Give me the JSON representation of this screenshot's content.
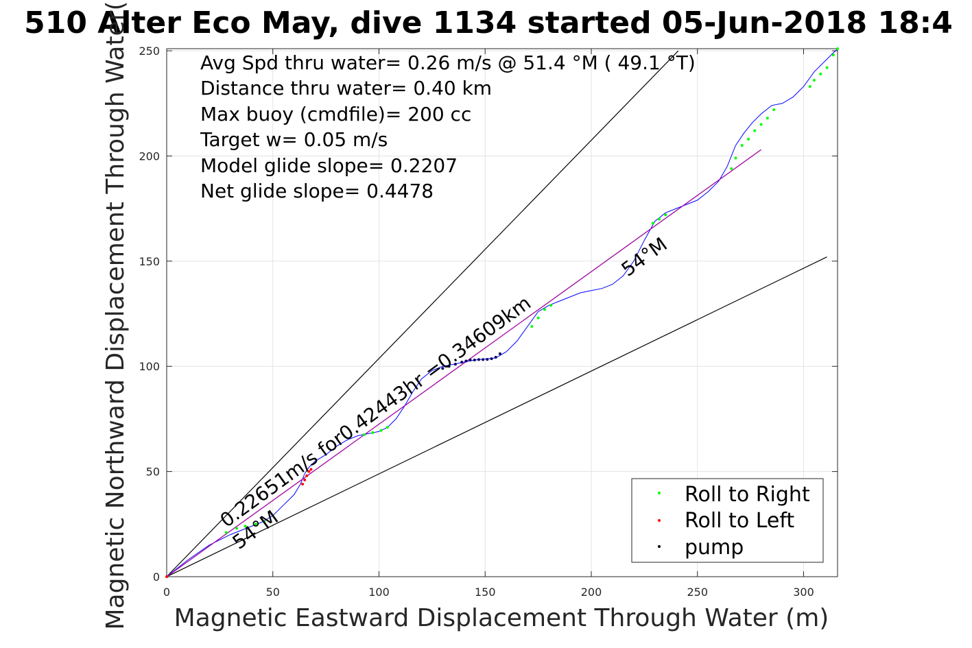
{
  "chart_data": {
    "type": "scatter",
    "title": "510 Alter Eco May, dive 1134 started 05-Jun-2018 18:4",
    "xlabel": "Magnetic Eastward Displacement Through Water (m)",
    "ylabel": "Magnetic Northward Displacement Through Water(",
    "xlim": [
      0,
      316
    ],
    "ylim": [
      0,
      251
    ],
    "xticks": [
      0,
      50,
      100,
      150,
      200,
      250,
      300
    ],
    "yticks": [
      0,
      50,
      100,
      150,
      200,
      250
    ],
    "grid": true,
    "legend_position": "bottom-right",
    "annotations": {
      "lines": [
        "Avg Spd thru water=  0.26 m/s @  51.4 °M ( 49.1 °T)",
        "Distance thru water=  0.40 km",
        "Max buoy (cmdfile)= 200 cc",
        "Target w= 0.05 m/s",
        "Model glide slope= 0.2207",
        "Net glide slope= 0.4478"
      ],
      "track_label": "0.22651m/s for0.42443hr =0.34609km",
      "heading_label_lower": "54°M",
      "heading_label_upper": "54°M"
    },
    "reference_lines": [
      {
        "x": [
          0,
          241
        ],
        "y": [
          0,
          250
        ],
        "color": "#000000"
      },
      {
        "x": [
          0,
          311
        ],
        "y": [
          0,
          152
        ],
        "color": "#000000"
      },
      {
        "x": [
          0,
          280
        ],
        "y": [
          0,
          203
        ],
        "color": "#000000"
      }
    ],
    "series": [
      {
        "name": "track",
        "color": "#0000ff",
        "x": [
          0,
          10,
          20,
          30,
          40,
          45,
          50,
          55,
          60,
          63,
          65,
          67,
          70,
          75,
          80,
          85,
          90,
          95,
          100,
          104,
          108,
          112,
          116,
          120,
          125,
          130,
          135,
          140,
          145,
          150,
          155,
          160,
          165,
          170,
          175,
          180,
          185,
          190,
          195,
          200,
          205,
          210,
          215,
          220,
          225,
          230,
          235,
          240,
          245,
          250,
          255,
          260,
          264,
          268,
          272,
          276,
          280,
          285,
          290,
          295,
          300,
          305,
          310,
          316
        ],
        "y": [
          0,
          8,
          15,
          20,
          24,
          26,
          29,
          34,
          39,
          44,
          49,
          52,
          55,
          58,
          62,
          65,
          67,
          68,
          69,
          71,
          75,
          81,
          88,
          94,
          98,
          100,
          101,
          102,
          103,
          103.5,
          104,
          107,
          112,
          119,
          126,
          129,
          131,
          133,
          135,
          136,
          137,
          139,
          143,
          150,
          160,
          169,
          173,
          175,
          177,
          179,
          183,
          188,
          195,
          205,
          211,
          216,
          220,
          224,
          225,
          228,
          233,
          240,
          245,
          251
        ]
      },
      {
        "name": "magenta",
        "color": "#cc00cc",
        "x": [
          0,
          280
        ],
        "y": [
          0,
          203
        ]
      },
      {
        "name": "Roll to Right",
        "color": "#00ff00",
        "x": [
          28,
          33,
          37,
          42,
          46,
          93,
          97,
          101,
          104,
          172,
          175,
          178,
          181,
          229,
          232,
          235,
          266,
          268,
          271,
          274,
          277,
          280,
          283,
          286,
          303,
          305,
          308,
          311,
          314,
          316
        ],
        "y": [
          21,
          23,
          24,
          25,
          26,
          67.5,
          68.5,
          69.5,
          71,
          119,
          123,
          127,
          129,
          168,
          170,
          172,
          194,
          199,
          205,
          208,
          212,
          215,
          218,
          222,
          233,
          236,
          239,
          242,
          248,
          251
        ]
      },
      {
        "name": "Roll to Left",
        "color": "#ff0000",
        "x": [
          0,
          64,
          65,
          66,
          67,
          68
        ],
        "y": [
          0,
          44,
          46,
          48,
          50,
          51
        ]
      },
      {
        "name": "pump",
        "color": "#000066",
        "x": [
          130,
          133,
          136,
          139,
          141,
          143,
          145,
          147,
          149,
          151,
          153,
          155,
          157
        ],
        "y": [
          99,
          100,
          101,
          102,
          102.5,
          103,
          103,
          103.2,
          103.2,
          103.3,
          103.6,
          104.3,
          106
        ]
      }
    ]
  }
}
